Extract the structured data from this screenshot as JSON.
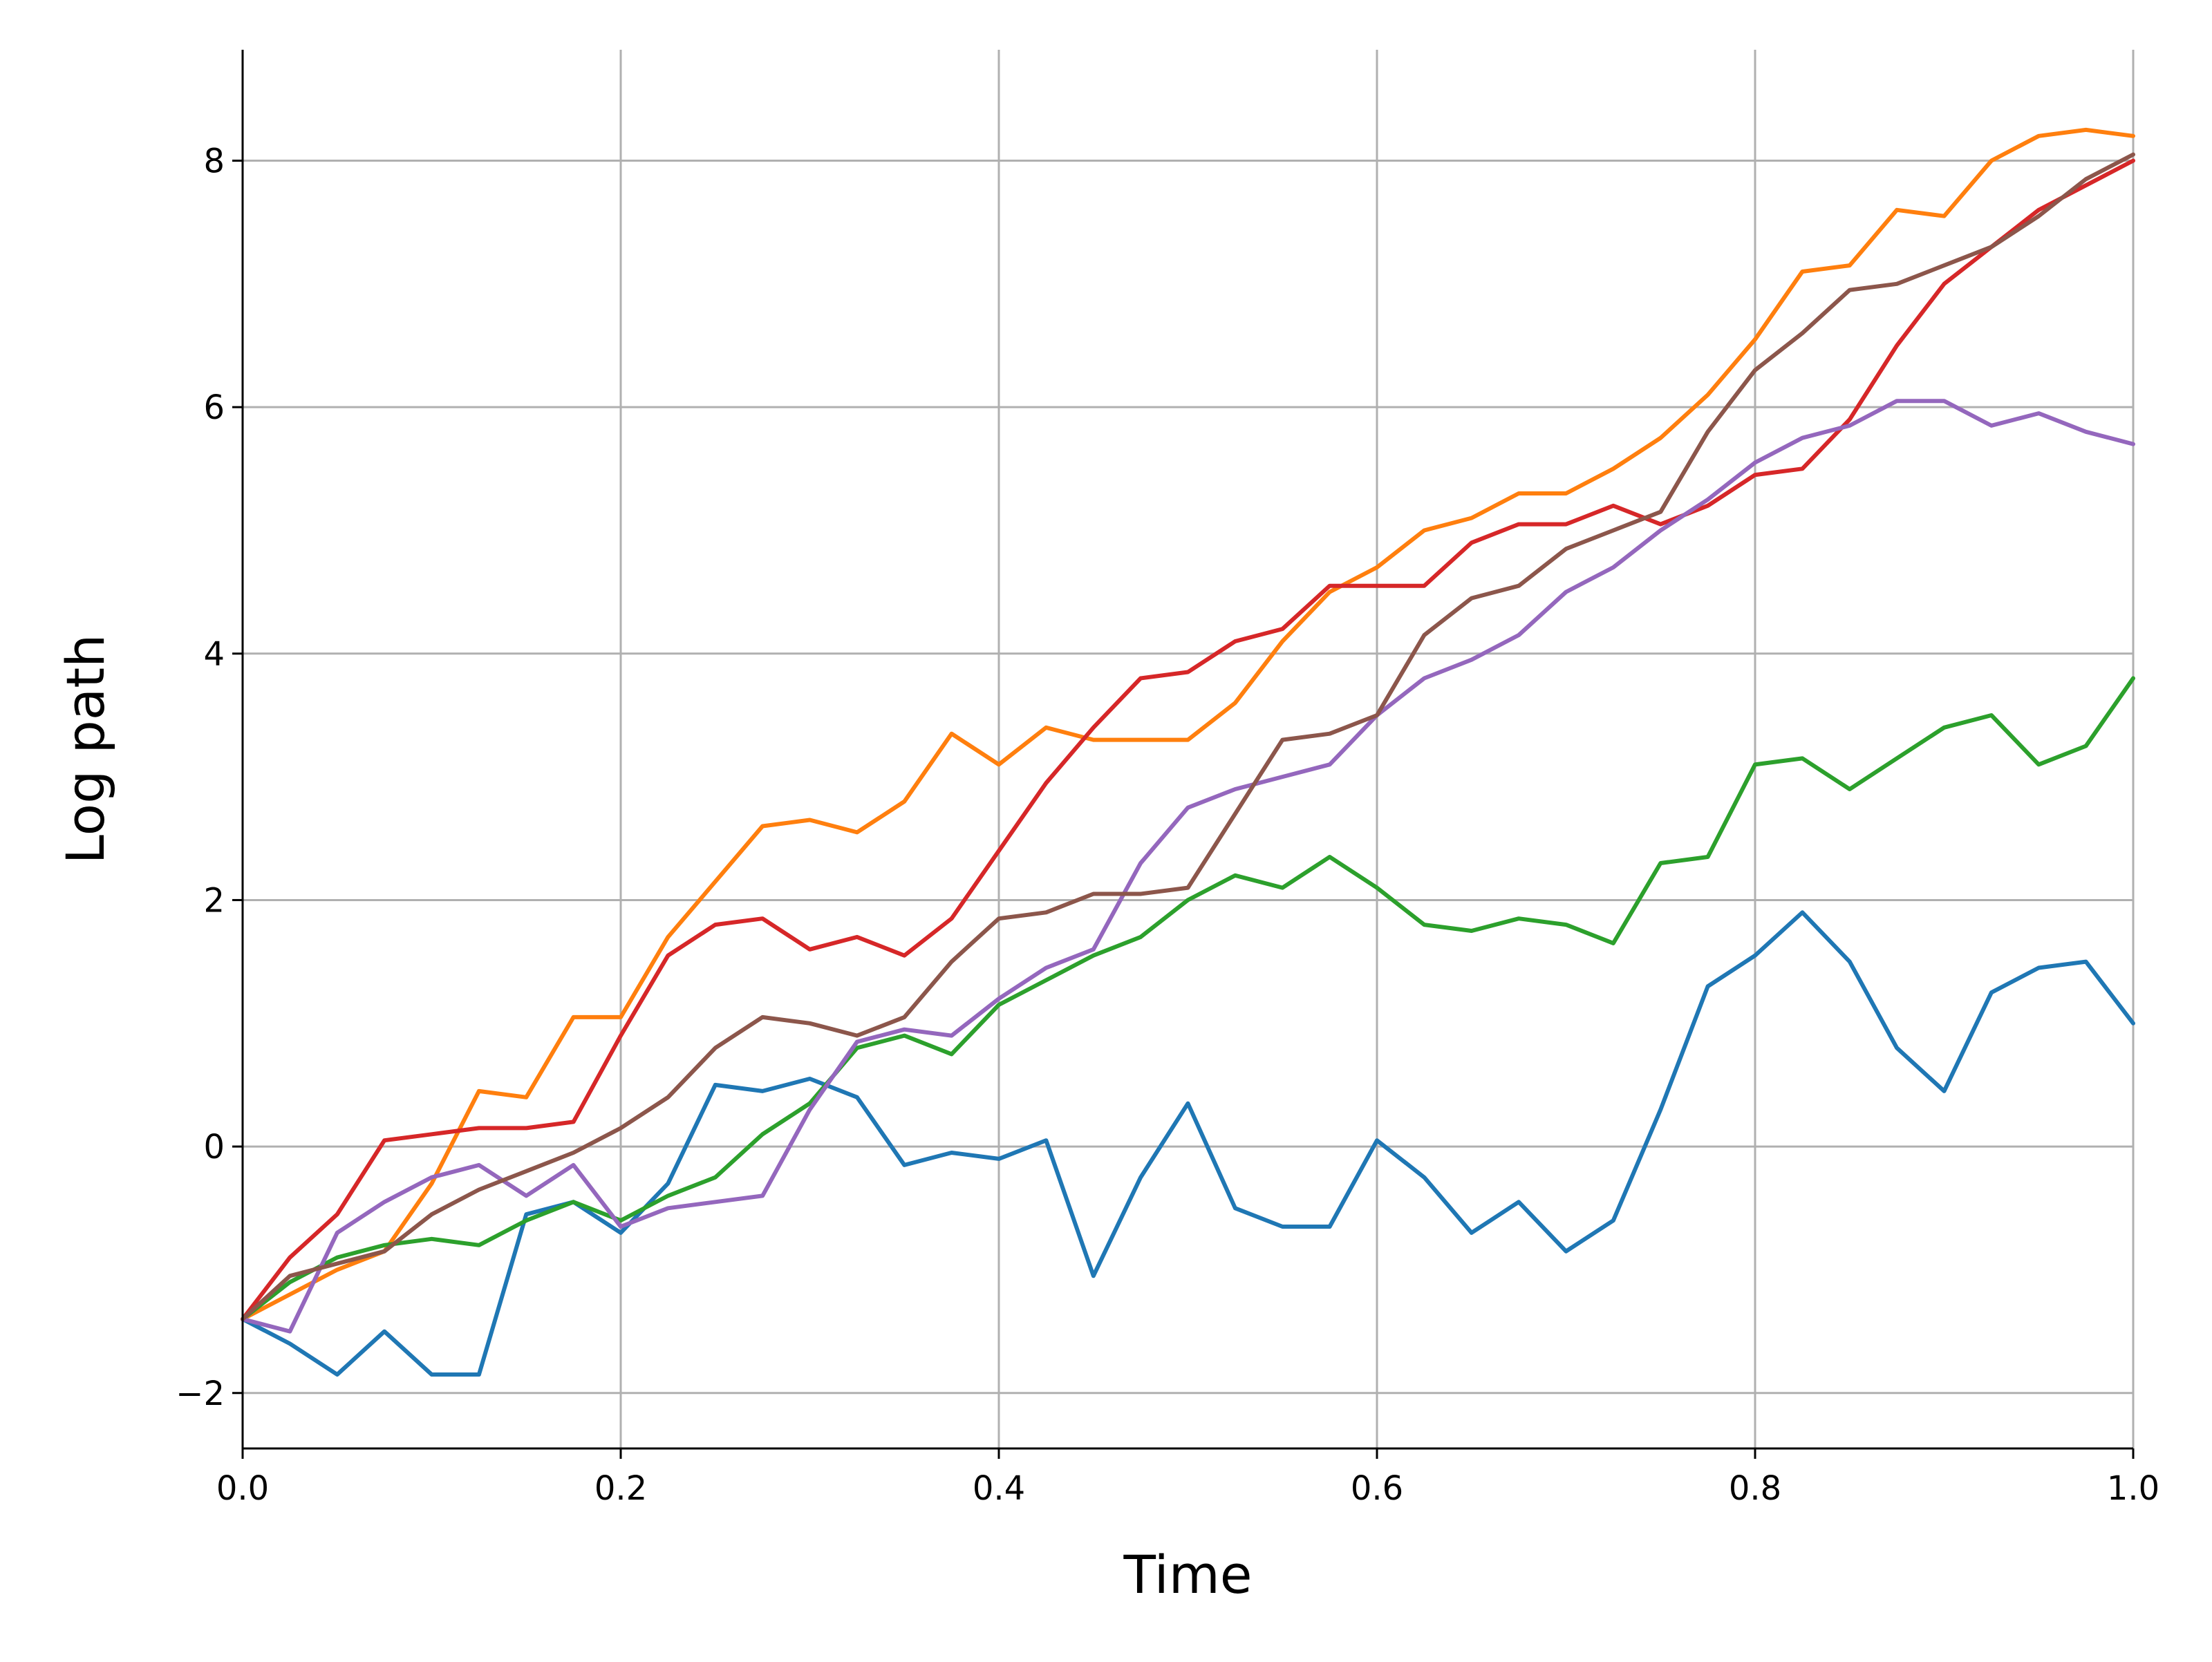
{
  "chart_data": {
    "type": "line",
    "title": "",
    "xlabel": "Time",
    "ylabel": "Log path",
    "xlim": [
      0.0,
      1.0
    ],
    "ylim": [
      -2.45,
      8.9
    ],
    "xticks": [
      0.0,
      0.2,
      0.4,
      0.6,
      0.8,
      1.0
    ],
    "xtick_labels": [
      "0.0",
      "0.2",
      "0.4",
      "0.6",
      "0.8",
      "1.0"
    ],
    "yticks": [
      -2,
      0,
      2,
      4,
      6,
      8
    ],
    "ytick_labels": [
      "−2",
      "0",
      "2",
      "4",
      "6",
      "8"
    ],
    "grid": true,
    "legend": "none",
    "x": [
      0.0,
      0.025,
      0.05,
      0.075,
      0.1,
      0.125,
      0.15,
      0.175,
      0.2,
      0.225,
      0.25,
      0.275,
      0.3,
      0.325,
      0.35,
      0.375,
      0.4,
      0.425,
      0.45,
      0.475,
      0.5,
      0.525,
      0.55,
      0.575,
      0.6,
      0.625,
      0.65,
      0.675,
      0.7,
      0.725,
      0.75,
      0.775,
      0.8,
      0.825,
      0.85,
      0.875,
      0.9,
      0.925,
      0.95,
      0.975,
      1.0
    ],
    "series": [
      {
        "color": "#1f77b4",
        "values": [
          -1.4,
          -1.6,
          -1.85,
          -1.5,
          -1.85,
          -1.85,
          -0.55,
          -0.45,
          -0.7,
          -0.3,
          0.5,
          0.45,
          0.55,
          0.4,
          -0.15,
          -0.05,
          -0.1,
          0.05,
          -1.05,
          -0.25,
          0.35,
          -0.5,
          -0.65,
          -0.65,
          0.05,
          -0.25,
          -0.7,
          -0.45,
          -0.85,
          -0.6,
          0.3,
          1.3,
          1.55,
          1.9,
          1.5,
          0.8,
          0.45,
          1.25,
          1.45,
          1.5,
          1.0
        ]
      },
      {
        "color": "#ff7f0e",
        "values": [
          -1.4,
          -1.2,
          -1.0,
          -0.85,
          -0.3,
          0.45,
          0.4,
          1.05,
          1.05,
          1.7,
          2.15,
          2.6,
          2.65,
          2.55,
          2.8,
          3.35,
          3.1,
          3.4,
          3.3,
          3.3,
          3.3,
          3.6,
          4.1,
          4.5,
          4.7,
          5.0,
          5.1,
          5.3,
          5.3,
          5.5,
          5.75,
          6.1,
          6.55,
          7.1,
          7.15,
          7.6,
          7.55,
          8.0,
          8.2,
          8.25,
          8.2
        ]
      },
      {
        "color": "#2ca02c",
        "values": [
          -1.4,
          -1.1,
          -0.9,
          -0.8,
          -0.75,
          -0.8,
          -0.6,
          -0.45,
          -0.6,
          -0.4,
          -0.25,
          0.1,
          0.35,
          0.8,
          0.9,
          0.75,
          1.15,
          1.35,
          1.55,
          1.7,
          2.0,
          2.2,
          2.1,
          2.35,
          2.1,
          1.8,
          1.75,
          1.85,
          1.8,
          1.65,
          2.3,
          2.35,
          3.1,
          3.15,
          2.9,
          3.15,
          3.4,
          3.5,
          3.1,
          3.25,
          3.8
        ]
      },
      {
        "color": "#d62728",
        "values": [
          -1.4,
          -0.9,
          -0.55,
          0.05,
          0.1,
          0.15,
          0.15,
          0.2,
          0.9,
          1.55,
          1.8,
          1.85,
          1.6,
          1.7,
          1.55,
          1.85,
          2.4,
          2.95,
          3.4,
          3.8,
          3.85,
          4.1,
          4.2,
          4.55,
          4.55,
          4.55,
          4.9,
          5.05,
          5.05,
          5.2,
          5.05,
          5.2,
          5.45,
          5.5,
          5.9,
          6.5,
          7.0,
          7.3,
          7.6,
          7.8,
          8.0
        ]
      },
      {
        "color": "#9467bd",
        "values": [
          -1.4,
          -1.5,
          -0.7,
          -0.45,
          -0.25,
          -0.15,
          -0.4,
          -0.15,
          -0.65,
          -0.5,
          -0.45,
          -0.4,
          0.3,
          0.85,
          0.95,
          0.9,
          1.2,
          1.45,
          1.6,
          2.3,
          2.75,
          2.9,
          3.0,
          3.1,
          3.5,
          3.8,
          3.95,
          4.15,
          4.5,
          4.7,
          5.0,
          5.25,
          5.55,
          5.75,
          5.85,
          6.05,
          6.05,
          5.85,
          5.95,
          5.8,
          5.7
        ]
      },
      {
        "color": "#8c564b",
        "values": [
          -1.4,
          -1.05,
          -0.95,
          -0.85,
          -0.55,
          -0.35,
          -0.2,
          -0.05,
          0.15,
          0.4,
          0.8,
          1.05,
          1.0,
          0.9,
          1.05,
          1.5,
          1.85,
          1.9,
          2.05,
          2.05,
          2.1,
          2.7,
          3.3,
          3.35,
          3.5,
          4.15,
          4.45,
          4.55,
          4.85,
          5.0,
          5.15,
          5.8,
          6.3,
          6.6,
          6.95,
          7.0,
          7.15,
          7.3,
          7.55,
          7.85,
          8.05
        ]
      }
    ]
  }
}
